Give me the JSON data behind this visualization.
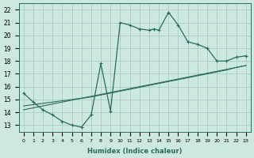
{
  "xlabel": "Humidex (Indice chaleur)",
  "xlim": [
    -0.5,
    23.5
  ],
  "ylim": [
    12.5,
    22.5
  ],
  "xticks": [
    0,
    1,
    2,
    3,
    4,
    5,
    6,
    7,
    8,
    9,
    10,
    11,
    12,
    13,
    14,
    15,
    16,
    17,
    18,
    19,
    20,
    21,
    22,
    23
  ],
  "yticks": [
    13,
    14,
    15,
    16,
    17,
    18,
    19,
    20,
    21,
    22
  ],
  "background_color": "#cce8e0",
  "grid_color": "#a0c8be",
  "line_color": "#2a6b5e",
  "curve1_x": [
    0,
    1,
    2,
    3,
    4,
    5,
    6,
    7,
    8,
    9,
    10,
    11,
    12,
    13,
    13.5,
    14,
    15,
    16,
    17,
    18,
    19,
    20,
    21,
    22,
    23
  ],
  "curve1_y": [
    15.5,
    14.8,
    14.2,
    13.8,
    13.3,
    13.0,
    12.85,
    13.8,
    17.8,
    14.1,
    21.0,
    20.8,
    20.5,
    20.4,
    20.5,
    20.4,
    21.8,
    20.8,
    19.5,
    19.3,
    19.0,
    18.0,
    18.0,
    18.3,
    18.4
  ],
  "line2_x": [
    0,
    1,
    2,
    3,
    4,
    5,
    6,
    7,
    8,
    9,
    10,
    11,
    12,
    13,
    14,
    15,
    16,
    17,
    18,
    19,
    20,
    21,
    22,
    23
  ],
  "line2_y": [
    14.5,
    14.6,
    14.7,
    14.8,
    14.9,
    15.0,
    15.1,
    15.2,
    15.35,
    15.5,
    15.65,
    15.8,
    15.95,
    16.1,
    16.25,
    16.4,
    16.55,
    16.7,
    16.85,
    17.0,
    17.15,
    17.3,
    17.5,
    17.65
  ],
  "line3_x": [
    0,
    1,
    2,
    3,
    4,
    5,
    6,
    7,
    8,
    9,
    10,
    11,
    12,
    13,
    14,
    15,
    16,
    17,
    18,
    19,
    20,
    21,
    22,
    23
  ],
  "line3_y": [
    14.2,
    14.35,
    14.5,
    14.65,
    14.8,
    14.95,
    15.1,
    15.25,
    15.4,
    15.55,
    15.7,
    15.85,
    16.0,
    16.15,
    16.3,
    16.45,
    16.6,
    16.75,
    16.9,
    17.05,
    17.2,
    17.35,
    17.5,
    17.65
  ]
}
